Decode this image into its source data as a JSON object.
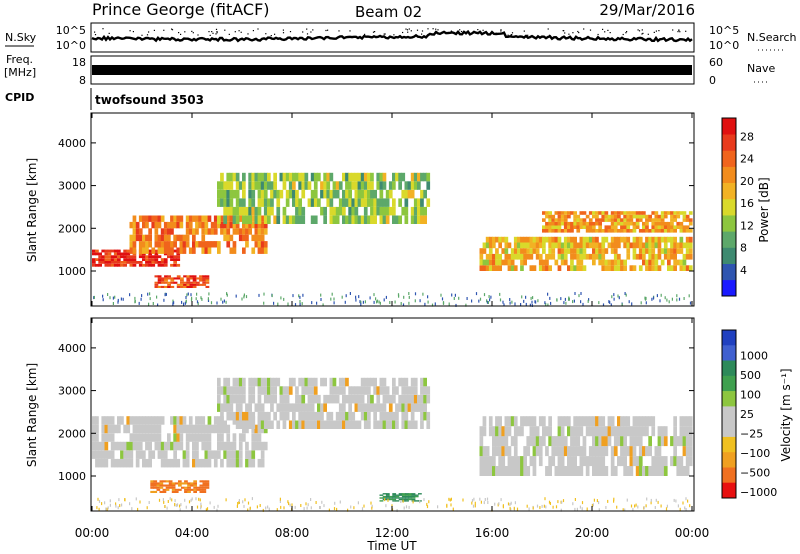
{
  "header": {
    "station": "Prince George (fitACF)",
    "beam": "Beam 02",
    "date": "29/Mar/2016"
  },
  "strips": {
    "nsky_label": "N.Sky",
    "nsky_ticks": [
      "10^5",
      "10^0"
    ],
    "nsearch_label": "N.Search",
    "nsearch_ticks": [
      "10^5",
      "10^0"
    ],
    "freq_label": "Freq.",
    "freq_unit": "[MHz]",
    "freq_ticks": [
      "18",
      "8"
    ],
    "nave_label": "Nave",
    "nave_ticks": [
      "60",
      "0"
    ],
    "cpid_label": "CPID",
    "cpid_value": "twofsound 3503"
  },
  "chart_data": [
    {
      "type": "heatmap",
      "quantity": "Power",
      "ylabel": "Slant Range [km]",
      "xlabel": "",
      "ylim": [
        180,
        4700
      ],
      "xlim_hours": [
        0,
        24
      ],
      "yticks": [
        "1000",
        "2000",
        "3000",
        "4000"
      ],
      "colorbar": {
        "label": "Power [dB]",
        "ticks": [
          "4",
          "8",
          "12",
          "16",
          "20",
          "24",
          "28"
        ],
        "colors": [
          "#1a1aff",
          "#2f55b0",
          "#3e8a70",
          "#5da86a",
          "#8dc63f",
          "#d9d92b",
          "#f2b224",
          "#f28c1c",
          "#f0641c",
          "#e83a1c",
          "#e01010"
        ]
      },
      "echo_regions": [
        {
          "from": "00:00",
          "to": "03:30",
          "range_km": [
            1100,
            1500
          ],
          "level_db": 28
        },
        {
          "from": "02:30",
          "to": "04:40",
          "range_km": [
            600,
            900
          ],
          "level_db": 26
        },
        {
          "from": "01:30",
          "to": "07:00",
          "range_km": [
            1400,
            2300
          ],
          "level_db": 22
        },
        {
          "from": "05:00",
          "to": "13:30",
          "range_km": [
            2100,
            3300
          ],
          "level_db": 12
        },
        {
          "from": "15:30",
          "to": "24:00",
          "range_km": [
            1000,
            1800
          ],
          "level_db": 18
        },
        {
          "from": "18:00",
          "to": "24:00",
          "range_km": [
            1900,
            2400
          ],
          "level_db": 20
        }
      ]
    },
    {
      "type": "heatmap",
      "quantity": "Velocity",
      "ylabel": "Slant Range [km]",
      "xlabel": "Time UT",
      "ylim": [
        180,
        4700
      ],
      "xlim_hours": [
        0,
        24
      ],
      "yticks": [
        "1000",
        "2000",
        "3000",
        "4000"
      ],
      "xticks": [
        "00:00",
        "04:00",
        "08:00",
        "12:00",
        "16:00",
        "20:00",
        "00:00"
      ],
      "colorbar": {
        "label": "Velocity [m s⁻¹]",
        "ticks": [
          "1000",
          "500",
          "100",
          "25",
          "−25",
          "−100",
          "−500",
          "−1000"
        ],
        "colors": [
          "#2040c0",
          "#4060d0",
          "#2d8a5a",
          "#3fa04f",
          "#8dc63f",
          "#c8c8c8",
          "#c8c8c8",
          "#f0c020",
          "#f0a020",
          "#f07020",
          "#e81010"
        ]
      },
      "echo_regions": [
        {
          "from": "00:00",
          "to": "07:00",
          "range_km": [
            1200,
            2400
          ],
          "velocity": 0
        },
        {
          "from": "02:20",
          "to": "04:40",
          "range_km": [
            600,
            900
          ],
          "velocity": -400
        },
        {
          "from": "05:00",
          "to": "13:30",
          "range_km": [
            2100,
            3300
          ],
          "velocity": 0
        },
        {
          "from": "11:30",
          "to": "13:10",
          "range_km": [
            400,
            600
          ],
          "velocity": 150
        },
        {
          "from": "15:30",
          "to": "24:00",
          "range_km": [
            1000,
            2400
          ],
          "velocity": 0
        }
      ]
    }
  ]
}
